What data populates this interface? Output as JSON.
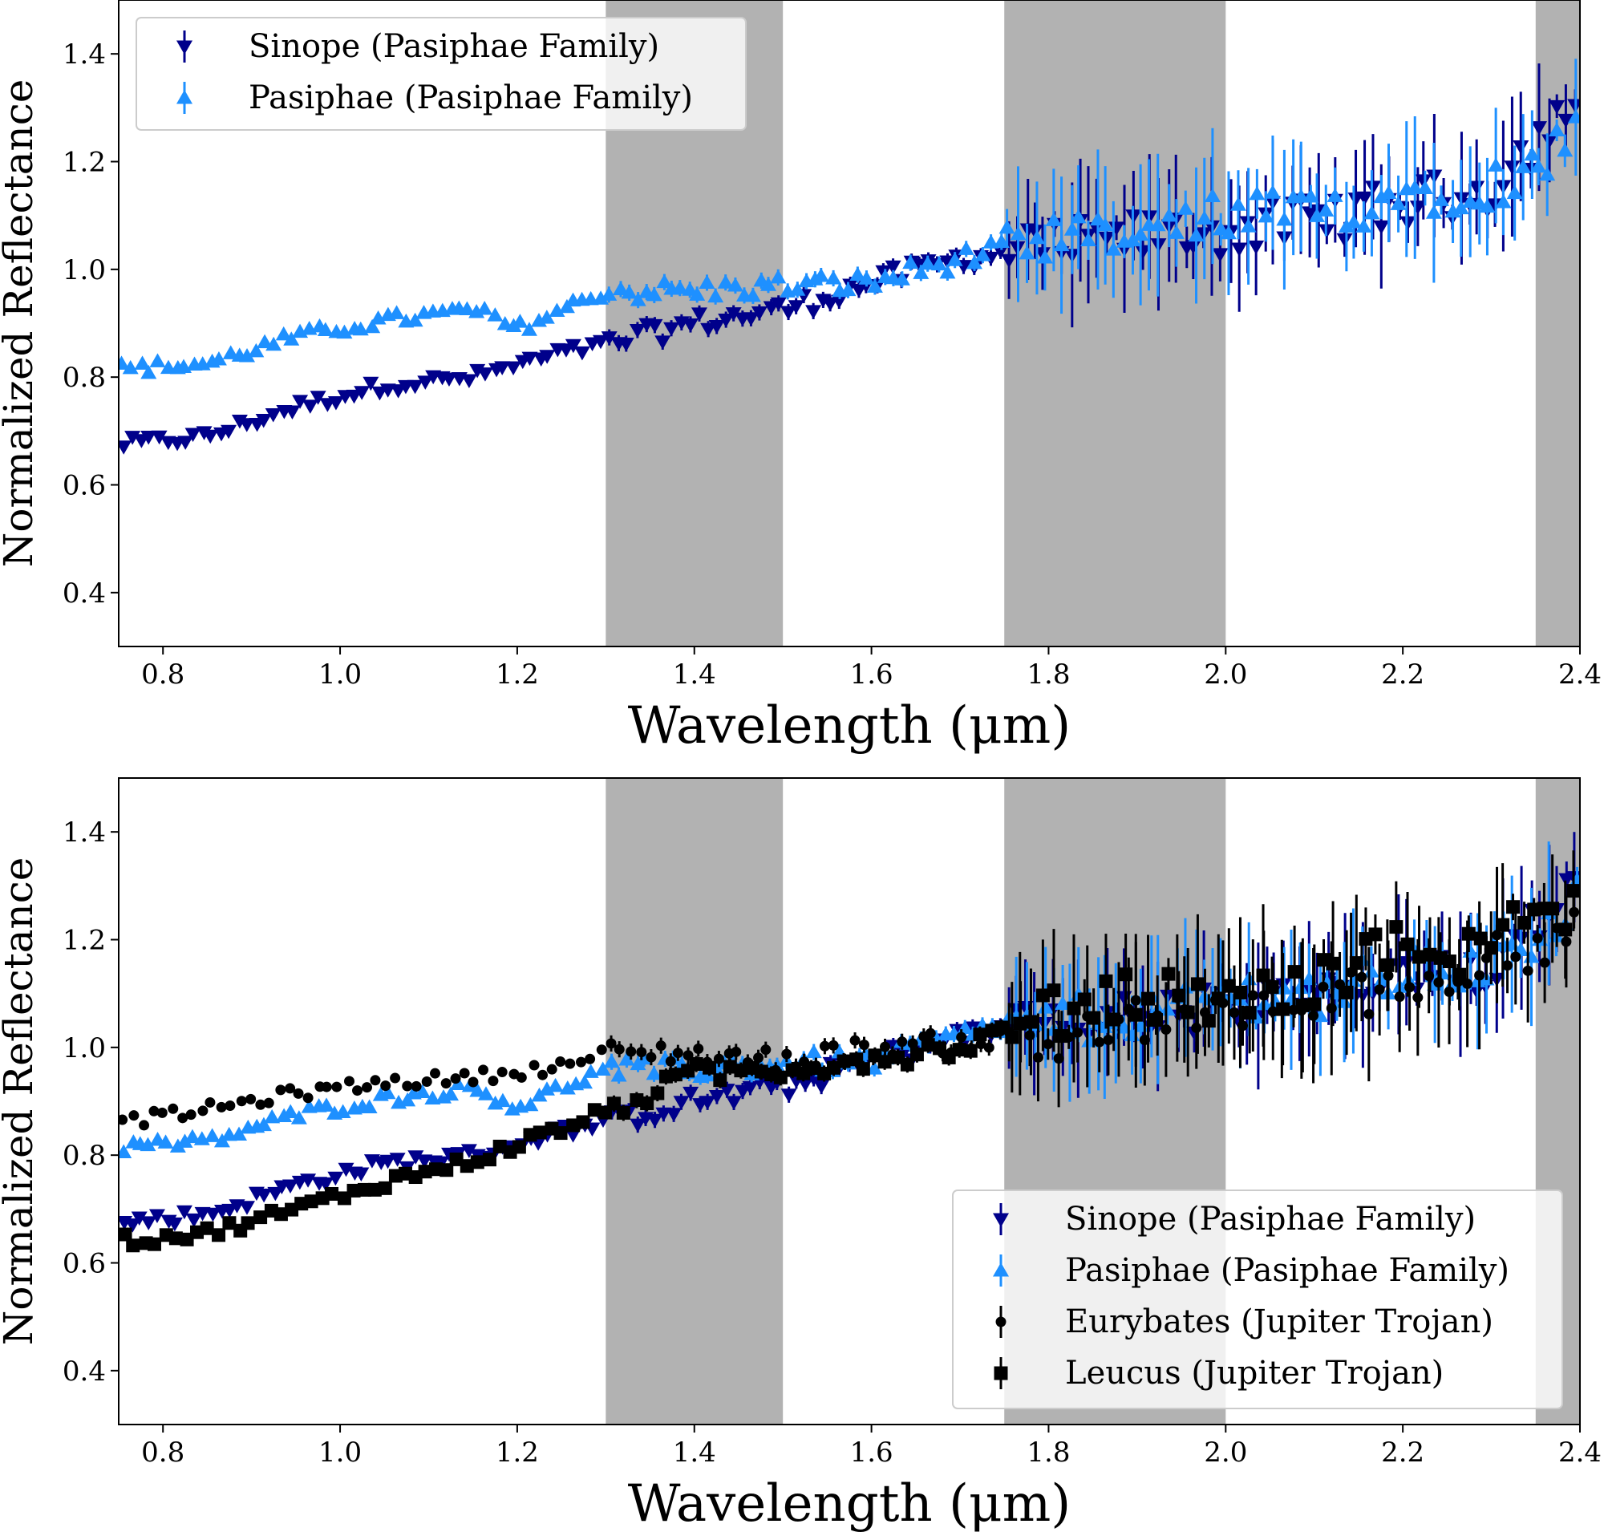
{
  "chart_data": [
    {
      "type": "scatter",
      "xlabel": "Wavelength (μm)",
      "ylabel": "Normalized Reflectance",
      "xlim": [
        0.75,
        2.4
      ],
      "ylim": [
        0.3,
        1.5
      ],
      "xticks": [
        "0.8",
        "1.0",
        "1.2",
        "1.4",
        "1.6",
        "1.8",
        "2.0",
        "2.2",
        "2.4"
      ],
      "yticks": [
        "0.4",
        "0.6",
        "0.8",
        "1.0",
        "1.2",
        "1.4"
      ],
      "shaded_regions": [
        [
          1.3,
          1.5
        ],
        [
          1.75,
          2.0
        ],
        [
          2.35,
          2.4
        ]
      ],
      "grid": false,
      "legend_position": "top-left",
      "series": [
        {
          "name": "Sinope (Pasiphae Family)",
          "marker": "triangle-down",
          "color": "#00008b",
          "anchors": [
            [
              0.75,
              0.675
            ],
            [
              0.85,
              0.69
            ],
            [
              0.95,
              0.745
            ],
            [
              1.05,
              0.785
            ],
            [
              1.15,
              0.8
            ],
            [
              1.25,
              0.845
            ],
            [
              1.3,
              0.86
            ],
            [
              1.4,
              0.9
            ],
            [
              1.5,
              0.925
            ],
            [
              1.6,
              0.975
            ],
            [
              1.7,
              1.02
            ],
            [
              1.8,
              1.04
            ],
            [
              1.9,
              1.06
            ],
            [
              2.0,
              1.07
            ],
            [
              2.1,
              1.09
            ],
            [
              2.2,
              1.12
            ],
            [
              2.3,
              1.15
            ],
            [
              2.35,
              1.24
            ],
            [
              2.4,
              1.32
            ]
          ]
        },
        {
          "name": "Pasiphae (Pasiphae Family)",
          "marker": "triangle-up",
          "color": "#1e90ff",
          "anchors": [
            [
              0.75,
              0.815
            ],
            [
              0.85,
              0.825
            ],
            [
              0.95,
              0.875
            ],
            [
              1.05,
              0.905
            ],
            [
              1.15,
              0.925
            ],
            [
              1.2,
              0.89
            ],
            [
              1.3,
              0.96
            ],
            [
              1.4,
              0.96
            ],
            [
              1.5,
              0.97
            ],
            [
              1.6,
              0.975
            ],
            [
              1.7,
              1.02
            ],
            [
              1.8,
              1.05
            ],
            [
              1.9,
              1.06
            ],
            [
              2.0,
              1.1
            ],
            [
              2.1,
              1.1
            ],
            [
              2.2,
              1.14
            ],
            [
              2.3,
              1.16
            ],
            [
              2.35,
              1.18
            ],
            [
              2.4,
              1.3
            ]
          ]
        }
      ]
    },
    {
      "type": "scatter",
      "xlabel": "Wavelength (μm)",
      "ylabel": "Normalized Reflectance",
      "xlim": [
        0.75,
        2.4
      ],
      "ylim": [
        0.3,
        1.5
      ],
      "xticks": [
        "0.8",
        "1.0",
        "1.2",
        "1.4",
        "1.6",
        "1.8",
        "2.0",
        "2.2",
        "2.4"
      ],
      "yticks": [
        "0.4",
        "0.6",
        "0.8",
        "1.0",
        "1.2",
        "1.4"
      ],
      "shaded_regions": [
        [
          1.3,
          1.5
        ],
        [
          1.75,
          2.0
        ],
        [
          2.35,
          2.4
        ]
      ],
      "grid": false,
      "legend_position": "bottom-right",
      "series": [
        {
          "name": "Sinope (Pasiphae Family)",
          "marker": "triangle-down",
          "color": "#00008b",
          "anchors": [
            [
              0.75,
              0.675
            ],
            [
              0.85,
              0.69
            ],
            [
              0.95,
              0.745
            ],
            [
              1.05,
              0.785
            ],
            [
              1.15,
              0.8
            ],
            [
              1.25,
              0.845
            ],
            [
              1.3,
              0.86
            ],
            [
              1.4,
              0.9
            ],
            [
              1.5,
              0.925
            ],
            [
              1.6,
              0.975
            ],
            [
              1.7,
              1.02
            ],
            [
              1.8,
              1.04
            ],
            [
              1.9,
              1.06
            ],
            [
              2.0,
              1.07
            ],
            [
              2.1,
              1.09
            ],
            [
              2.2,
              1.12
            ],
            [
              2.3,
              1.15
            ],
            [
              2.35,
              1.24
            ],
            [
              2.4,
              1.32
            ]
          ]
        },
        {
          "name": "Pasiphae (Pasiphae Family)",
          "marker": "triangle-up",
          "color": "#1e90ff",
          "anchors": [
            [
              0.75,
              0.815
            ],
            [
              0.85,
              0.825
            ],
            [
              0.95,
              0.875
            ],
            [
              1.05,
              0.905
            ],
            [
              1.15,
              0.925
            ],
            [
              1.2,
              0.89
            ],
            [
              1.3,
              0.96
            ],
            [
              1.4,
              0.96
            ],
            [
              1.5,
              0.97
            ],
            [
              1.6,
              0.975
            ],
            [
              1.7,
              1.02
            ],
            [
              1.8,
              1.05
            ],
            [
              1.9,
              1.06
            ],
            [
              2.0,
              1.1
            ],
            [
              2.1,
              1.1
            ],
            [
              2.2,
              1.14
            ],
            [
              2.3,
              1.16
            ],
            [
              2.35,
              1.18
            ],
            [
              2.4,
              1.3
            ]
          ]
        },
        {
          "name": "Eurybates (Jupiter Trojan)",
          "marker": "circle",
          "color": "#000000",
          "anchors": [
            [
              0.75,
              0.86
            ],
            [
              0.85,
              0.885
            ],
            [
              0.95,
              0.915
            ],
            [
              1.05,
              0.935
            ],
            [
              1.15,
              0.945
            ],
            [
              1.25,
              0.965
            ],
            [
              1.3,
              0.99
            ],
            [
              1.4,
              0.99
            ],
            [
              1.5,
              0.975
            ],
            [
              1.6,
              1.0
            ],
            [
              1.7,
              1.01
            ],
            [
              1.8,
              1.02
            ],
            [
              1.9,
              1.05
            ],
            [
              2.0,
              1.06
            ],
            [
              2.1,
              1.08
            ],
            [
              2.2,
              1.12
            ],
            [
              2.3,
              1.16
            ],
            [
              2.4,
              1.22
            ]
          ]
        },
        {
          "name": "Leucus (Jupiter Trojan)",
          "marker": "square",
          "color": "#000000",
          "anchors": [
            [
              0.75,
              0.64
            ],
            [
              0.85,
              0.655
            ],
            [
              0.95,
              0.7
            ],
            [
              1.05,
              0.75
            ],
            [
              1.15,
              0.79
            ],
            [
              1.25,
              0.85
            ],
            [
              1.3,
              0.88
            ],
            [
              1.4,
              0.95
            ],
            [
              1.5,
              0.96
            ],
            [
              1.6,
              0.98
            ],
            [
              1.7,
              1.0
            ],
            [
              1.8,
              1.06
            ],
            [
              1.9,
              1.1
            ],
            [
              2.0,
              1.08
            ],
            [
              2.1,
              1.12
            ],
            [
              2.2,
              1.19
            ],
            [
              2.3,
              1.17
            ],
            [
              2.35,
              1.3
            ],
            [
              2.4,
              1.24
            ]
          ]
        }
      ]
    }
  ]
}
